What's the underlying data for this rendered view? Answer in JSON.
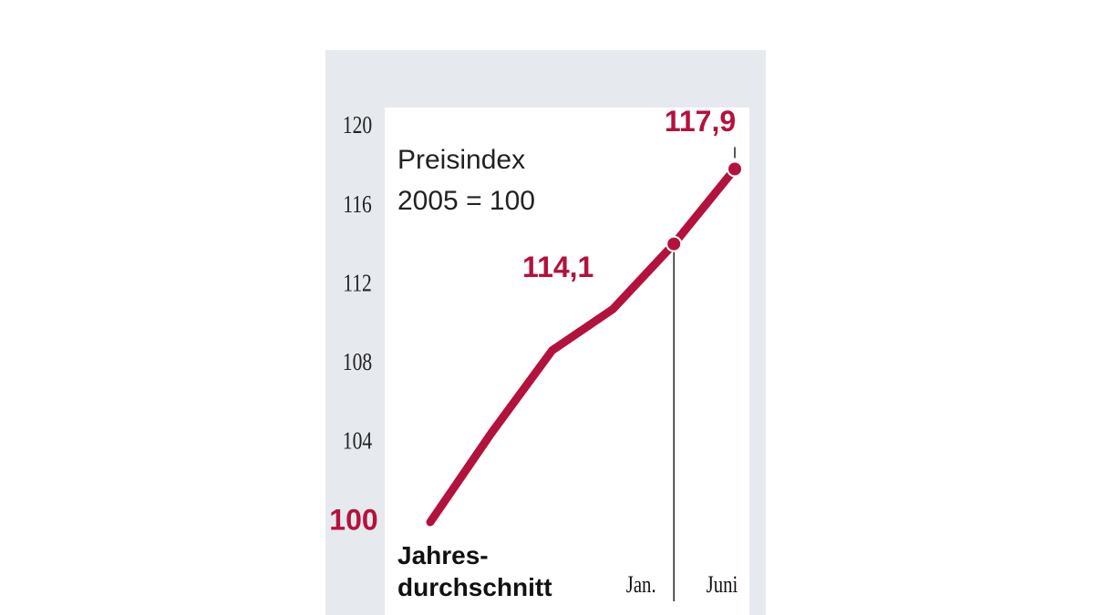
{
  "chart_data": {
    "type": "line",
    "annotation": "Preisindex\n2005 = 100",
    "categories": [
      "Jahres-\ndurchschnitt",
      null,
      null,
      null,
      "Jan.",
      "Juni"
    ],
    "values": [
      100,
      104.5,
      108.7,
      110.8,
      114.1,
      117.9
    ],
    "value_labels": [
      "100",
      null,
      null,
      null,
      "114,1",
      "117,9"
    ],
    "color": "#b3123c",
    "ylim": [
      100,
      120
    ],
    "yticks": [
      104,
      108,
      112,
      116,
      120
    ]
  }
}
